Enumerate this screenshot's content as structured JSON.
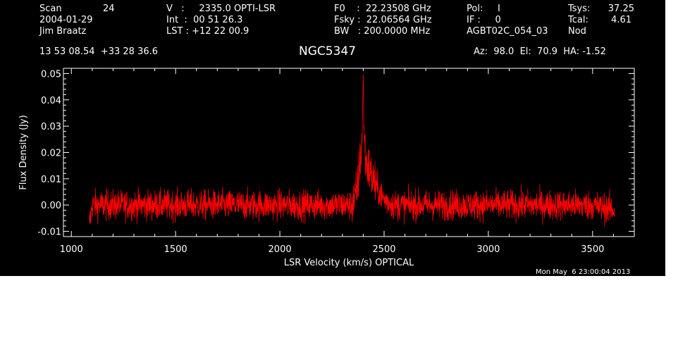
{
  "header": {
    "scan_label": "Scan",
    "scan_value": "24",
    "date": "2004-01-29",
    "observer": "Jim Braatz",
    "v_line": "V   :     2335.0 OPTI-LSR",
    "int_line": "Int  :  00 51 26.3",
    "lst_line": "LST : +12 22 00.9",
    "f0_line": "F0    :  22.23508 GHz",
    "fsky_line": "Fsky :  22.06564 GHz",
    "bw_line": "BW   : 200.0000 MHz",
    "pol_line": "Pol:     I",
    "if_line": "IF :     0",
    "project": "AGBT02C_054_03",
    "tsys_label": "Tsys:",
    "tsys_value": "37.25",
    "tcal_label": "Tcal:",
    "tcal_value": "4.61",
    "mode": "Nod",
    "coords": "13 53 08.54  +33 28 36.6",
    "source": "NGC5347",
    "azel": "Az:  98.0  El:  70.9  HA: -1.52",
    "timestamp": "Mon May  6 23:00:04 2013"
  },
  "chart_data": {
    "type": "line",
    "title": "NGC5347",
    "xlabel": "LSR Velocity (km/s) OPTICAL",
    "ylabel": "Flux Density (Jy)",
    "xlim": [
      962,
      3700
    ],
    "ylim": [
      -0.012,
      0.052
    ],
    "xticks": [
      1000,
      1500,
      2000,
      2500,
      3000,
      3500
    ],
    "xtick_labels": [
      "1000",
      "1500",
      "2000",
      "2500",
      "3000",
      "3500"
    ],
    "yticks": [
      -0.01,
      0.0,
      0.01,
      0.02,
      0.03,
      0.04,
      0.05
    ],
    "ytick_labels": [
      "-0.01",
      "0.00",
      "0.01",
      "0.02",
      "0.03",
      "0.04",
      "0.05"
    ],
    "grid": false,
    "line_color": "#ff0000",
    "background": "#000000",
    "axis_color": "#ffffff",
    "series": [
      {
        "x": [
          1085,
          1100,
          1200,
          1300,
          1400,
          1500,
          1600,
          1700,
          1800,
          1900,
          2000,
          2100,
          2200,
          2300,
          2340,
          2360,
          2370,
          2380,
          2390,
          2395,
          2400,
          2405,
          2410,
          2420,
          2430,
          2440,
          2450,
          2470,
          2500,
          2550,
          2600,
          2700,
          2800,
          2900,
          3000,
          3100,
          3200,
          3300,
          3400,
          3500,
          3605
        ],
        "y": [
          -0.008,
          0.0,
          0.0,
          0.0,
          0.0,
          0.0,
          0.0,
          0.0,
          0.0,
          0.0,
          0.0,
          0.0,
          0.0,
          0.0,
          0.0,
          0.002,
          0.006,
          0.013,
          0.021,
          0.028,
          0.047,
          0.026,
          0.018,
          0.015,
          0.013,
          0.011,
          0.009,
          0.006,
          0.002,
          0.0,
          0.0,
          0.0,
          0.0,
          0.0,
          0.0,
          0.0,
          0.0,
          0.0,
          0.0,
          0.0,
          -0.002
        ],
        "noise_rms": 0.0028
      }
    ]
  }
}
